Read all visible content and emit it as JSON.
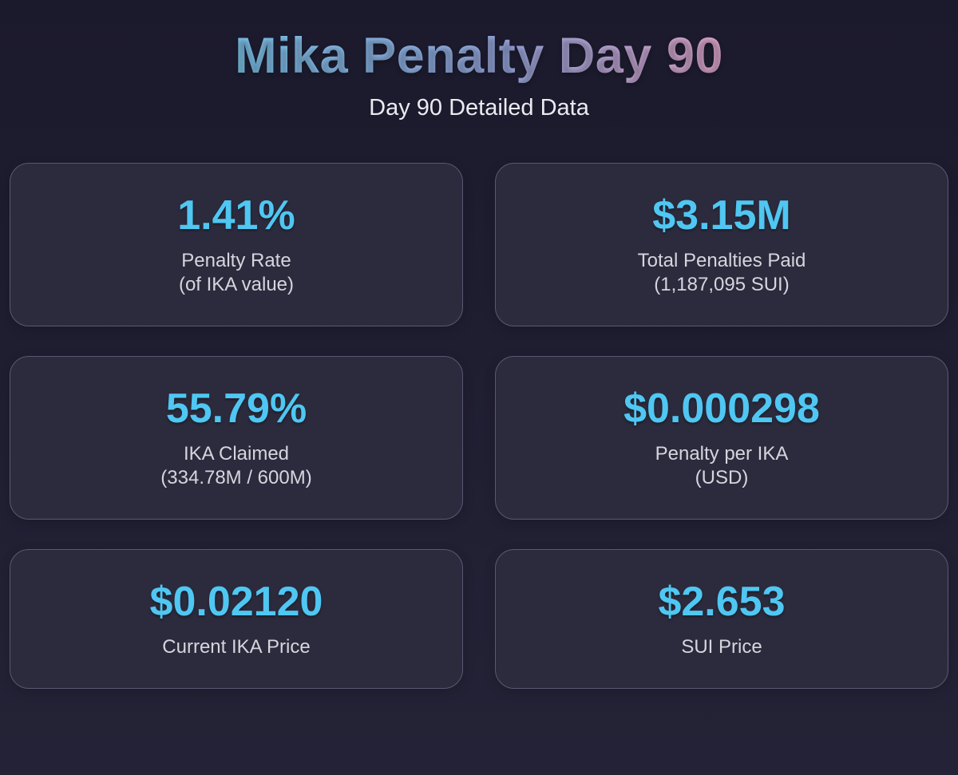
{
  "header": {
    "title": "Mika Penalty Day 90",
    "subtitle": "Day 90 Detailed Data"
  },
  "stats": {
    "cards": [
      {
        "value": "1.41%",
        "label": "Penalty Rate",
        "sublabel": "(of IKA value)"
      },
      {
        "value": "$3.15M",
        "label": "Total Penalties Paid",
        "sublabel": "(1,187,095 SUI)"
      },
      {
        "value": "55.79%",
        "label": "IKA Claimed",
        "sublabel": "(334.78M / 600M)"
      },
      {
        "value": "$0.000298",
        "label": "Penalty per IKA",
        "sublabel": "(USD)"
      },
      {
        "value": "$0.02120",
        "label": "Current IKA Price",
        "sublabel": ""
      },
      {
        "value": "$2.653",
        "label": "SUI Price",
        "sublabel": ""
      }
    ]
  },
  "colors": {
    "page_background_top": "#1b1a2c",
    "page_background_bottom": "#242236",
    "card_background": "#2c2b3d",
    "card_border": "#5a5872",
    "value_accent": "#4fc7f2",
    "label_text": "#d6d5de",
    "subtitle_text": "#eceaf1",
    "title_gradient_left": "#7dc4ec",
    "title_gradient_middle": "#96a5da",
    "title_gradient_right": "#dda4c9"
  }
}
